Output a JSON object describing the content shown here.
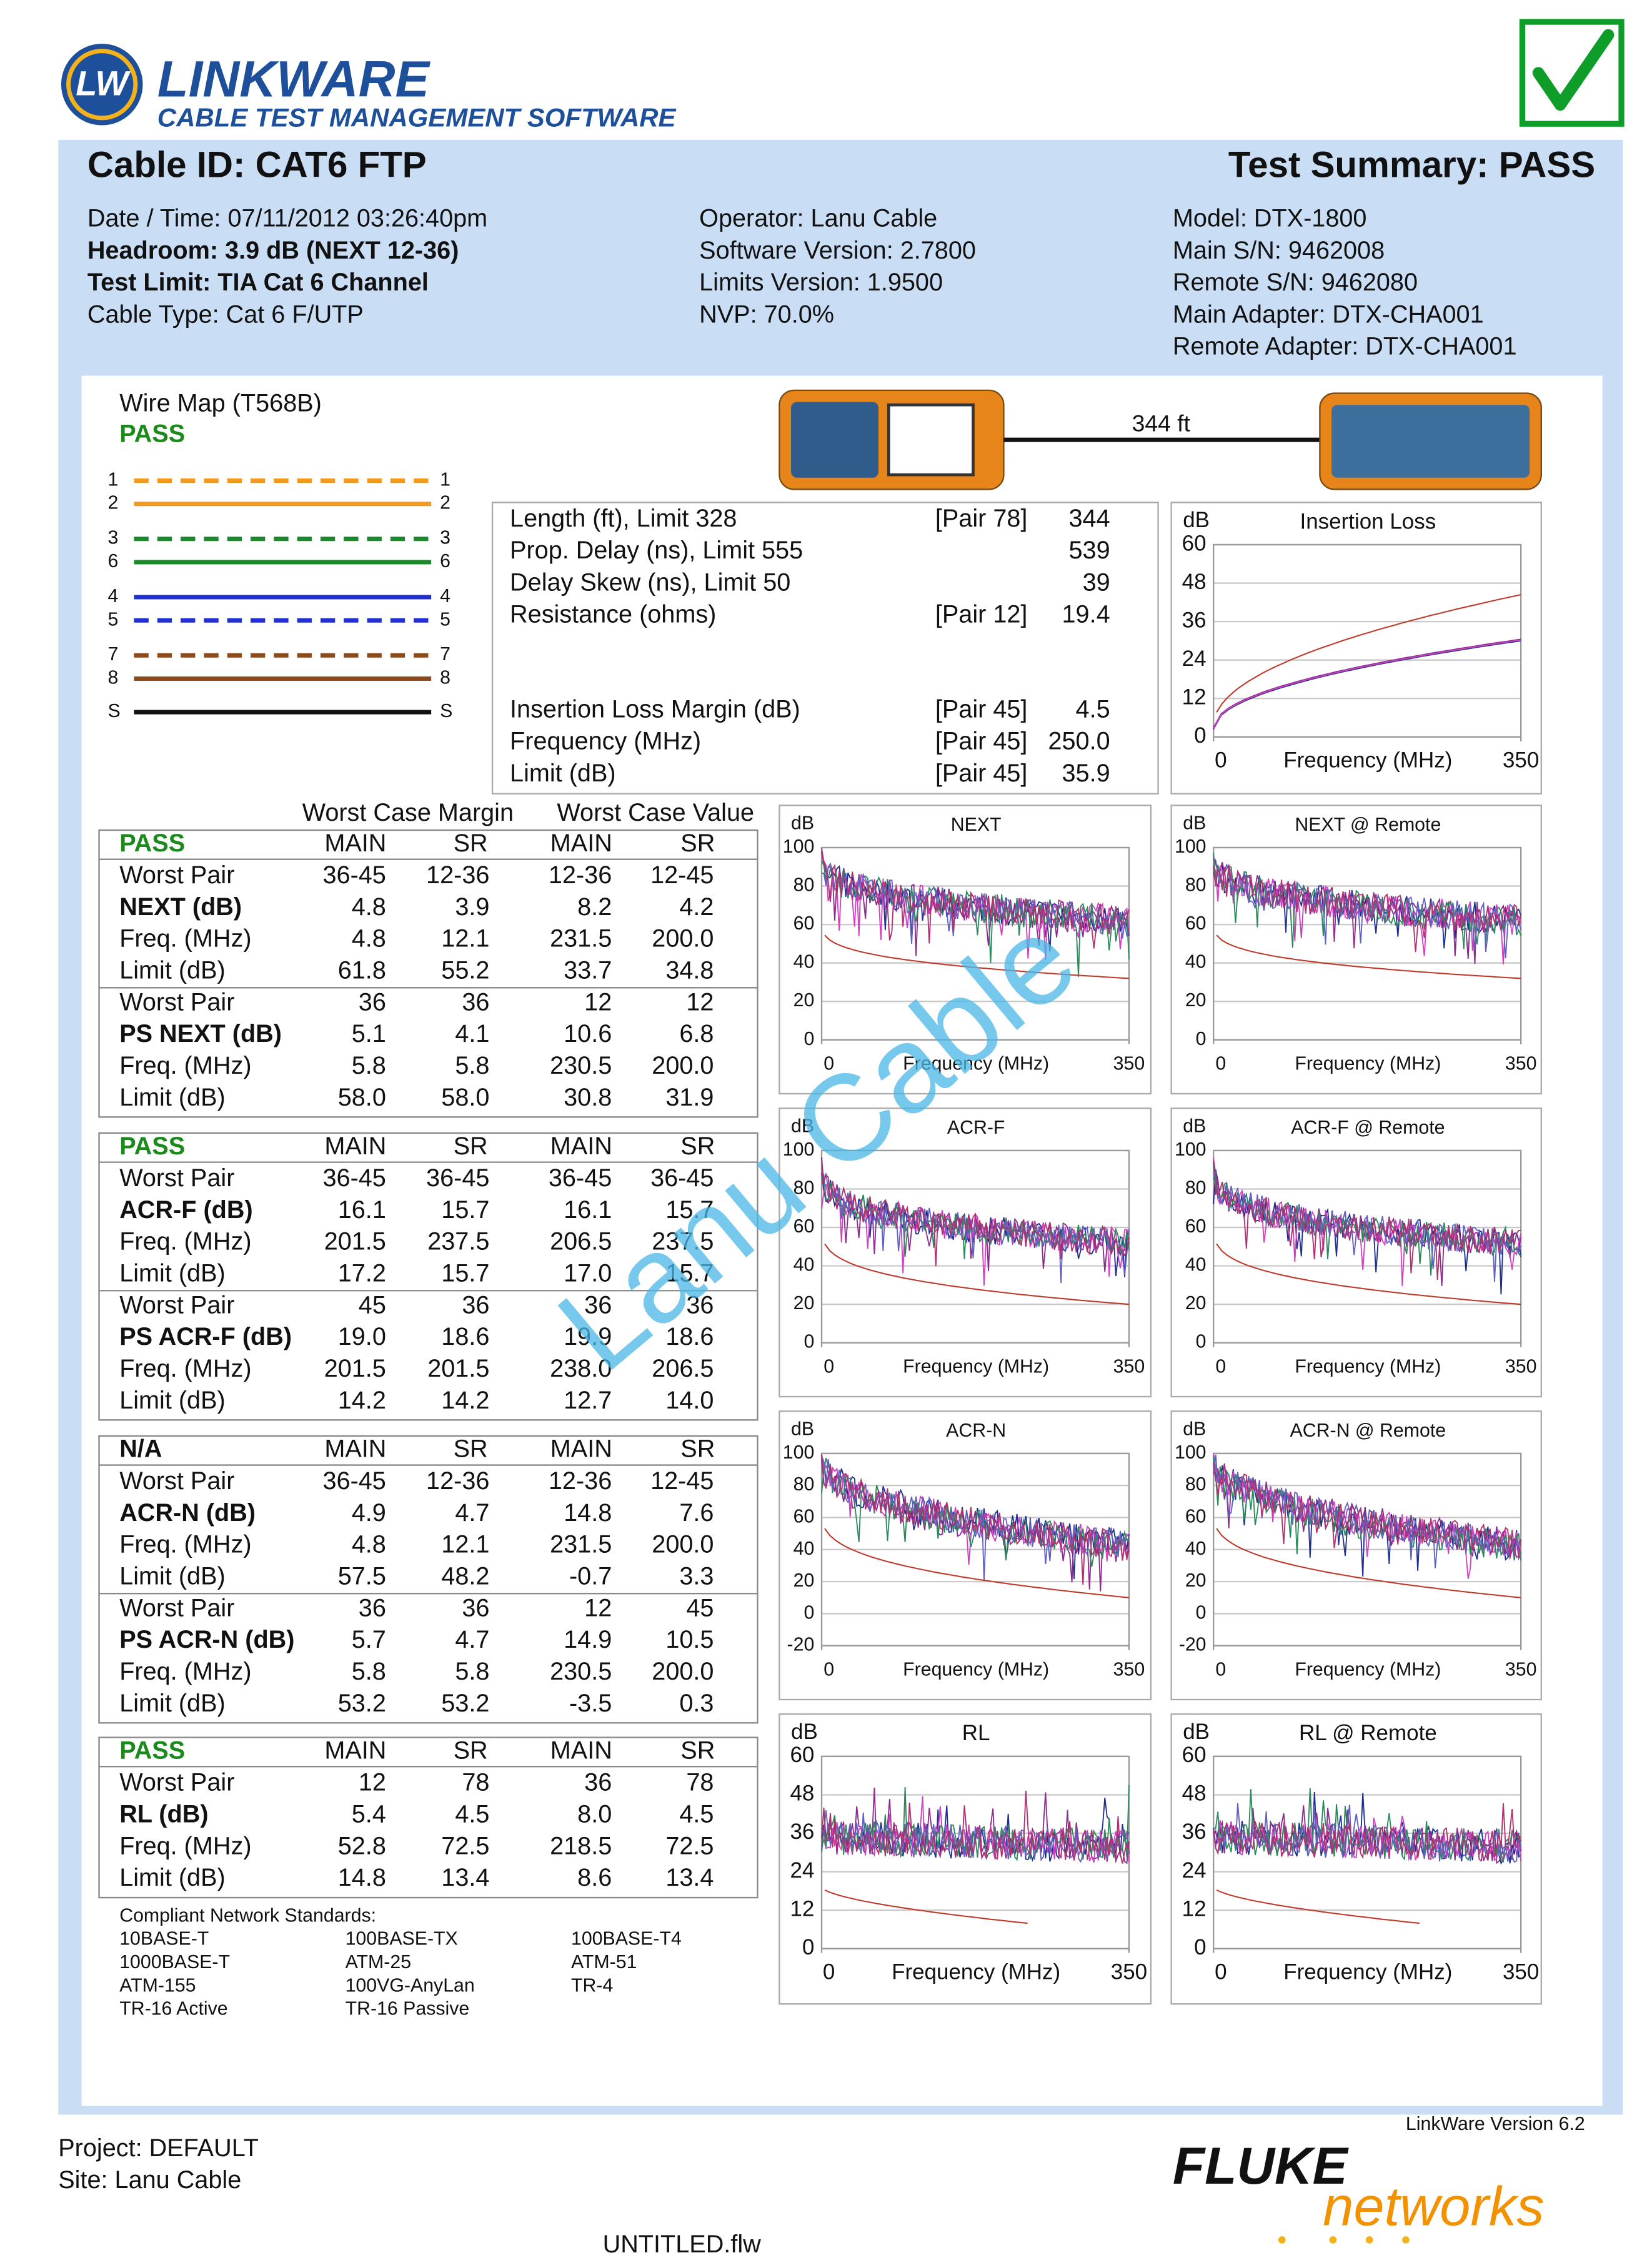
{
  "header": {
    "logo": "LW",
    "brand": "LINKWARE",
    "tagline": "CABLE TEST MANAGEMENT SOFTWARE"
  },
  "summary": {
    "cable_id": "Cable ID: CAT6 FTP",
    "result": "Test Summary: PASS"
  },
  "info": [
    [
      "Date / Time: 07/11/2012 03:26:40pm",
      "Headroom: 3.9 dB (NEXT 12-36)",
      "Test Limit: TIA Cat 6 Channel",
      "Cable Type: Cat 6 F/UTP"
    ],
    [
      "Operator: Lanu Cable",
      "Software Version: 2.7800",
      "Limits Version: 1.9500",
      "NVP: 70.0%"
    ],
    [
      "Model: DTX-1800",
      "Main S/N: 9462008",
      "Remote S/N: 9462080",
      "Main Adapter: DTX-CHA001",
      "Remote Adapter: DTX-CHA001"
    ]
  ],
  "wire_map": {
    "title": "Wire Map (T568B)",
    "status": "PASS",
    "pins": [
      "1",
      "2",
      "3",
      "6",
      "4",
      "5",
      "7",
      "8",
      "S"
    ],
    "length": "344 ft"
  },
  "measurements": [
    {
      "label": "Length (ft), Limit 328",
      "pair": "[Pair 78]",
      "value": "344"
    },
    {
      "label": "Prop. Delay (ns), Limit 555",
      "value": "539"
    },
    {
      "label": "Delay Skew (ns), Limit 50",
      "value": "39"
    },
    {
      "label": "Resistance (ohms)",
      "pair": "[Pair 12]",
      "value": "19.4"
    },
    {
      "label": "Insertion Loss Margin (dB)",
      "pair": "[Pair 45]",
      "value": "4.5"
    },
    {
      "label": "Frequency (MHz)",
      "pair": "[Pair 45]",
      "value": "250.0"
    },
    {
      "label": "Limit (dB)",
      "pair": "[Pair 45]",
      "value": "35.9"
    }
  ],
  "results": {
    "headings": [
      "Worst Case Margin",
      "Worst Case Value"
    ],
    "sections": [
      {
        "header": [
          "PASS",
          "MAIN",
          "SR",
          "MAIN",
          "SR"
        ],
        "rows": [
          [
            "Worst Pair",
            "36-45",
            "12-36",
            "12-36",
            "12-45"
          ],
          [
            "NEXT (dB)",
            "4.8",
            "3.9",
            "8.2",
            "4.2"
          ],
          [
            "Freq. (MHz)",
            "4.8",
            "12.1",
            "231.5",
            "200.0"
          ],
          [
            "Limit (dB)",
            "61.8",
            "55.2",
            "33.7",
            "34.8"
          ],
          [
            "Worst Pair",
            "36",
            "36",
            "12",
            "12"
          ],
          [
            "PS NEXT (dB)",
            "5.1",
            "4.1",
            "10.6",
            "6.8"
          ],
          [
            "Freq. (MHz)",
            "5.8",
            "5.8",
            "230.5",
            "200.0"
          ],
          [
            "Limit (dB)",
            "58.0",
            "58.0",
            "30.8",
            "31.9"
          ]
        ]
      },
      {
        "header": [
          "PASS",
          "MAIN",
          "SR",
          "MAIN",
          "SR"
        ],
        "rows": [
          [
            "Worst Pair",
            "36-45",
            "36-45",
            "36-45",
            "36-45"
          ],
          [
            "ACR-F (dB)",
            "16.1",
            "15.7",
            "16.1",
            "15.7"
          ],
          [
            "Freq. (MHz)",
            "201.5",
            "237.5",
            "206.5",
            "237.5"
          ],
          [
            "Limit (dB)",
            "17.2",
            "15.7",
            "17.0",
            "15.7"
          ],
          [
            "Worst Pair",
            "45",
            "36",
            "36",
            "36"
          ],
          [
            "PS ACR-F (dB)",
            "19.0",
            "18.6",
            "19.9",
            "18.6"
          ],
          [
            "Freq. (MHz)",
            "201.5",
            "201.5",
            "238.0",
            "206.5"
          ],
          [
            "Limit (dB)",
            "14.2",
            "14.2",
            "12.7",
            "14.0"
          ]
        ]
      },
      {
        "header": [
          "N/A",
          "MAIN",
          "SR",
          "MAIN",
          "SR"
        ],
        "rows": [
          [
            "Worst Pair",
            "36-45",
            "12-36",
            "12-36",
            "12-45"
          ],
          [
            "ACR-N (dB)",
            "4.9",
            "4.7",
            "14.8",
            "7.6"
          ],
          [
            "Freq. (MHz)",
            "4.8",
            "12.1",
            "231.5",
            "200.0"
          ],
          [
            "Limit (dB)",
            "57.5",
            "48.2",
            "-0.7",
            "3.3"
          ],
          [
            "Worst Pair",
            "36",
            "36",
            "12",
            "45"
          ],
          [
            "PS ACR-N (dB)",
            "5.7",
            "4.7",
            "14.9",
            "10.5"
          ],
          [
            "Freq. (MHz)",
            "5.8",
            "5.8",
            "230.5",
            "200.0"
          ],
          [
            "Limit (dB)",
            "53.2",
            "53.2",
            "-3.5",
            "0.3"
          ]
        ]
      },
      {
        "header": [
          "PASS",
          "MAIN",
          "SR",
          "MAIN",
          "SR"
        ],
        "rows": [
          [
            "Worst Pair",
            "12",
            "78",
            "36",
            "78"
          ],
          [
            "RL (dB)",
            "5.4",
            "4.5",
            "8.0",
            "4.5"
          ],
          [
            "Freq. (MHz)",
            "52.8",
            "72.5",
            "218.5",
            "72.5"
          ],
          [
            "Limit (dB)",
            "14.8",
            "13.4",
            "8.6",
            "13.4"
          ]
        ]
      }
    ]
  },
  "standards": {
    "title": "Compliant Network Standards:",
    "items": [
      "10BASE-T",
      "100BASE-TX",
      "100BASE-T4",
      "1000BASE-T",
      "ATM-25",
      "ATM-51",
      "ATM-155",
      "100VG-AnyLan",
      "TR-4",
      "TR-16 Active",
      "TR-16 Passive"
    ]
  },
  "graphs": [
    {
      "title": "Insertion Loss",
      "unit": "dB",
      "yticks": [
        60,
        48,
        36,
        24,
        12,
        0
      ],
      "xticks": [
        0,
        350
      ],
      "xlabel": "Frequency (MHz)"
    },
    {
      "title": "NEXT",
      "unit": "dB",
      "yticks": [
        100,
        80,
        60,
        40,
        20,
        0
      ],
      "xticks": [
        0,
        350
      ],
      "xlabel": "Frequency (MHz)"
    },
    {
      "title": "NEXT @ Remote",
      "unit": "dB",
      "yticks": [
        100,
        80,
        60,
        40,
        20,
        0
      ],
      "xticks": [
        0,
        350
      ],
      "xlabel": "Frequency (MHz)"
    },
    {
      "title": "ACR-F",
      "unit": "dB",
      "yticks": [
        100,
        80,
        60,
        40,
        20,
        0
      ],
      "xticks": [
        0,
        350
      ],
      "xlabel": "Frequency (MHz)"
    },
    {
      "title": "ACR-F @ Remote",
      "unit": "dB",
      "yticks": [
        100,
        80,
        60,
        40,
        20,
        0
      ],
      "xticks": [
        0,
        350
      ],
      "xlabel": "Frequency (MHz)"
    },
    {
      "title": "ACR-N",
      "unit": "dB",
      "yticks": [
        100,
        80,
        60,
        40,
        20,
        0,
        -20
      ],
      "xticks": [
        0,
        350
      ],
      "xlabel": "Frequency (MHz)"
    },
    {
      "title": "ACR-N @ Remote",
      "unit": "dB",
      "yticks": [
        100,
        80,
        60,
        40,
        20,
        0,
        -20
      ],
      "xticks": [
        0,
        350
      ],
      "xlabel": "Frequency (MHz)"
    },
    {
      "title": "RL",
      "unit": "dB",
      "yticks": [
        60,
        48,
        36,
        24,
        12,
        0
      ],
      "xticks": [
        0,
        350
      ],
      "xlabel": "Frequency (MHz)"
    },
    {
      "title": "RL @ Remote",
      "unit": "dB",
      "yticks": [
        60,
        48,
        36,
        24,
        12,
        0
      ],
      "xticks": [
        0,
        350
      ],
      "xlabel": "Frequency (MHz)"
    }
  ],
  "watermark": "Lanu Cable",
  "footer": {
    "version": "LinkWare Version  6.2",
    "project": "Project: DEFAULT",
    "site": "Site: Lanu Cable",
    "file": "UNTITLED.flw",
    "brand": "FLUKE",
    "brand_sub": "networks"
  }
}
